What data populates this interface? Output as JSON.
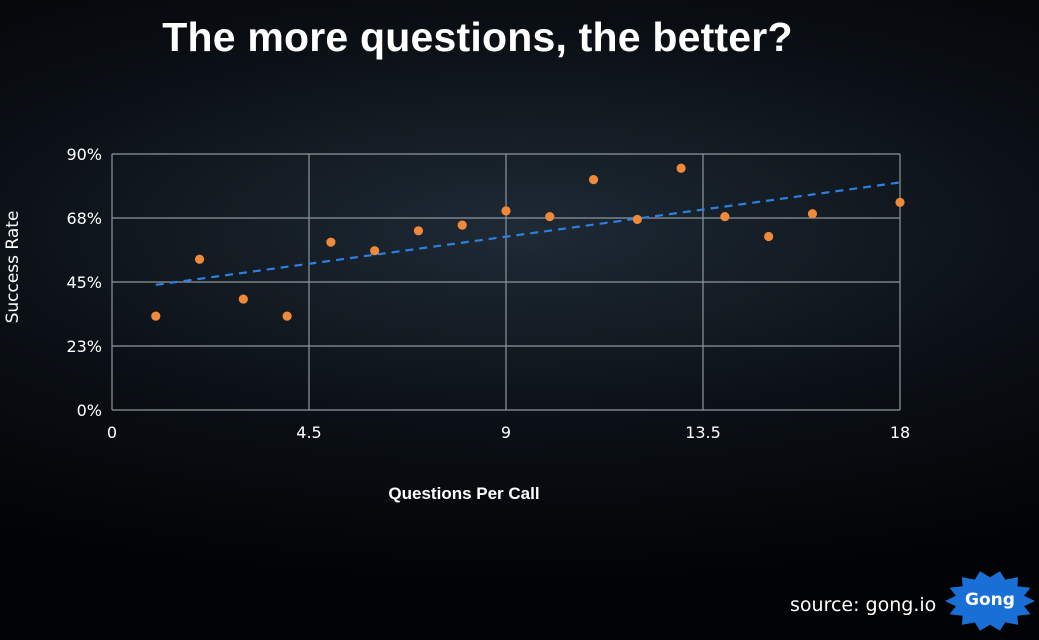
{
  "title": "The more questions, the better?",
  "source_text": "source: gong.io",
  "logo_text": "Gong",
  "colors": {
    "points": "#f08a3a",
    "trendline": "#2f7fe0",
    "grid": "#8e969d",
    "logo": "#1a6fd6"
  },
  "chart_data": {
    "type": "scatter",
    "xlabel": "Questions Per Call",
    "ylabel": "Success Rate",
    "xlim": [
      0,
      18
    ],
    "ylim": [
      0,
      90
    ],
    "x_ticks": [
      0,
      4.5,
      9,
      13.5,
      18
    ],
    "x_tick_labels": [
      "0",
      "4.5",
      "9",
      "13.5",
      "18"
    ],
    "y_ticks": [
      0,
      22.5,
      45,
      67.5,
      90
    ],
    "y_tick_labels": [
      "0%",
      "23%",
      "45%",
      "68%",
      "90%"
    ],
    "grid": true,
    "points": [
      {
        "x": 1,
        "y": 33
      },
      {
        "x": 2,
        "y": 53
      },
      {
        "x": 3,
        "y": 39
      },
      {
        "x": 4,
        "y": 33
      },
      {
        "x": 5,
        "y": 59
      },
      {
        "x": 6,
        "y": 56
      },
      {
        "x": 7,
        "y": 63
      },
      {
        "x": 8,
        "y": 65
      },
      {
        "x": 9,
        "y": 70
      },
      {
        "x": 10,
        "y": 68
      },
      {
        "x": 11,
        "y": 81
      },
      {
        "x": 12,
        "y": 67
      },
      {
        "x": 13,
        "y": 85
      },
      {
        "x": 14,
        "y": 68
      },
      {
        "x": 15,
        "y": 61
      },
      {
        "x": 16,
        "y": 69
      },
      {
        "x": 18,
        "y": 73
      }
    ],
    "trendline": {
      "style": "dashed",
      "from": {
        "x": 1,
        "y": 44
      },
      "to": {
        "x": 18,
        "y": 80
      }
    }
  }
}
